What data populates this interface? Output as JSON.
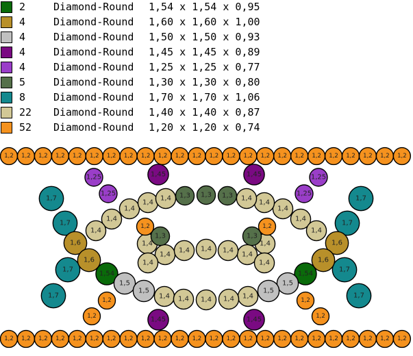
{
  "legend": [
    {
      "count": "2",
      "shape": "Diamond-Round",
      "dims": "1,54 x 1,54 x 0,95",
      "color": "#0a6b0a"
    },
    {
      "count": "4",
      "shape": "Diamond-Round",
      "dims": "1,60 x 1,60 x 1,00",
      "color": "#b8902a"
    },
    {
      "count": "4",
      "shape": "Diamond-Round",
      "dims": "1,50 x 1,50 x 0,93",
      "color": "#c0c0c0"
    },
    {
      "count": "4",
      "shape": "Diamond-Round",
      "dims": "1,45 x 1,45 x 0,89",
      "color": "#7a0a82"
    },
    {
      "count": "4",
      "shape": "Diamond-Round",
      "dims": "1,25 x 1,25 x 0,77",
      "color": "#9a3ec8"
    },
    {
      "count": "5",
      "shape": "Diamond-Round",
      "dims": "1,30 x 1,30 x 0,80",
      "color": "#55704a"
    },
    {
      "count": "8",
      "shape": "Diamond-Round",
      "dims": "1,70 x 1,70 x 1,06",
      "color": "#14898e"
    },
    {
      "count": "22",
      "shape": "Diamond-Round",
      "dims": "1,40 x 1,40 x 0,87",
      "color": "#d2c896"
    },
    {
      "count": "52",
      "shape": "Diamond-Round",
      "dims": "1,20 x 1,20 x 0,74",
      "color": "#f5921e"
    }
  ],
  "stone_types": {
    "1,2": {
      "color": "#f5921e",
      "size": 1.2
    },
    "1,25": {
      "color": "#9a3ec8",
      "size": 1.25
    },
    "1,3": {
      "color": "#55704a",
      "size": 1.3
    },
    "1,4": {
      "color": "#d2c896",
      "size": 1.4
    },
    "1,45": {
      "color": "#7a0a82",
      "size": 1.45
    },
    "1,5": {
      "color": "#c0c0c0",
      "size": 1.5
    },
    "1,54": {
      "color": "#0a6b0a",
      "size": 1.54
    },
    "1,6": {
      "color": "#b8902a",
      "size": 1.6
    },
    "1,7": {
      "color": "#14898e",
      "size": 1.7
    }
  }
}
